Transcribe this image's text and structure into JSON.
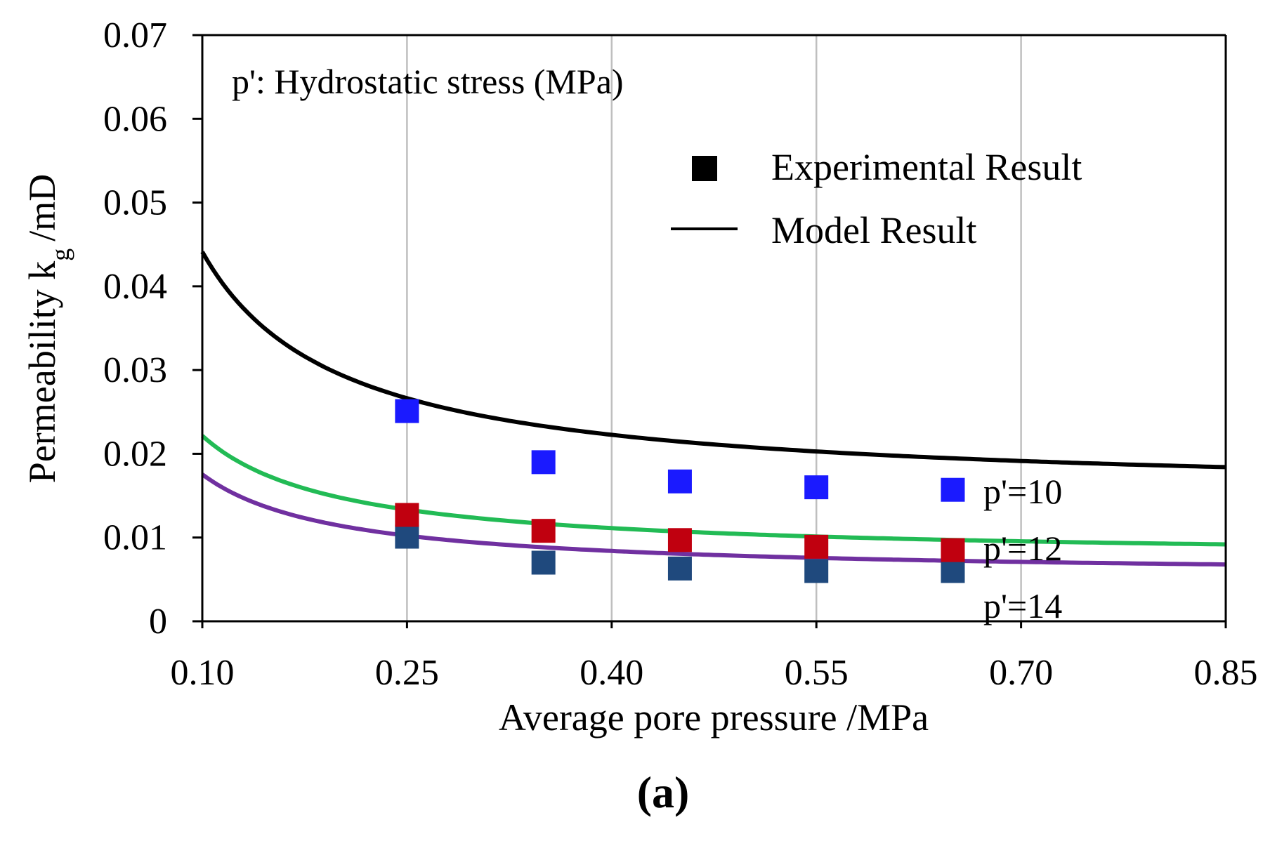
{
  "figure_label": "(a)",
  "chart_data": {
    "type": "line",
    "title": "",
    "annotation": "p': Hydrostatic stress (MPa)",
    "xlabel": "Average pore pressure /MPa",
    "ylabel_main": "Permeability k",
    "ylabel_sub": "g",
    "ylabel_unit": "/mD",
    "xlim": [
      0.1,
      0.85
    ],
    "ylim": [
      0,
      0.07
    ],
    "x_ticks": [
      0.1,
      0.25,
      0.4,
      0.55,
      0.7,
      0.85
    ],
    "x_tick_labels": [
      "0.10",
      "0.25",
      "0.40",
      "0.55",
      "0.70",
      "0.85"
    ],
    "y_ticks": [
      0,
      0.01,
      0.02,
      0.03,
      0.04,
      0.05,
      0.06,
      0.07
    ],
    "y_tick_labels": [
      "0",
      "0.01",
      "0.02",
      "0.03",
      "0.04",
      "0.05",
      "0.06",
      "0.07"
    ],
    "grid": "vertical",
    "legend": {
      "position": "top-right",
      "entries": [
        {
          "label": "Experimental Result",
          "marker": "square",
          "color": "#000000"
        },
        {
          "label": "Model Result",
          "marker": "line",
          "color": "#000000"
        }
      ]
    },
    "series": [
      {
        "name": "p'=10",
        "label": "p'=10",
        "line_color": "#000000",
        "marker_color": "#1a1aff",
        "model": {
          "a": 0.01498,
          "b": 0.002914
        },
        "points": {
          "x": [
            0.25,
            0.35,
            0.45,
            0.55,
            0.65
          ],
          "y": [
            0.0251,
            0.019,
            0.0167,
            0.016,
            0.0157
          ]
        }
      },
      {
        "name": "p'=12",
        "label": "p'=12",
        "line_color": "#22bb55",
        "marker_color": "#c0000f",
        "model": {
          "a": 0.00745,
          "b": 0.00147
        },
        "points": {
          "x": [
            0.25,
            0.35,
            0.45,
            0.55,
            0.65
          ],
          "y": [
            0.0127,
            0.0108,
            0.0097,
            0.0089,
            0.0085
          ]
        }
      },
      {
        "name": "p'=14",
        "label": "p'=14",
        "line_color": "#7030a0",
        "marker_color": "#1f497d",
        "model": {
          "a": 0.00535,
          "b": 0.001219
        },
        "points": {
          "x": [
            0.25,
            0.35,
            0.45,
            0.55,
            0.65
          ],
          "y": [
            0.0101,
            0.007,
            0.0063,
            0.006,
            0.006
          ]
        }
      }
    ]
  }
}
